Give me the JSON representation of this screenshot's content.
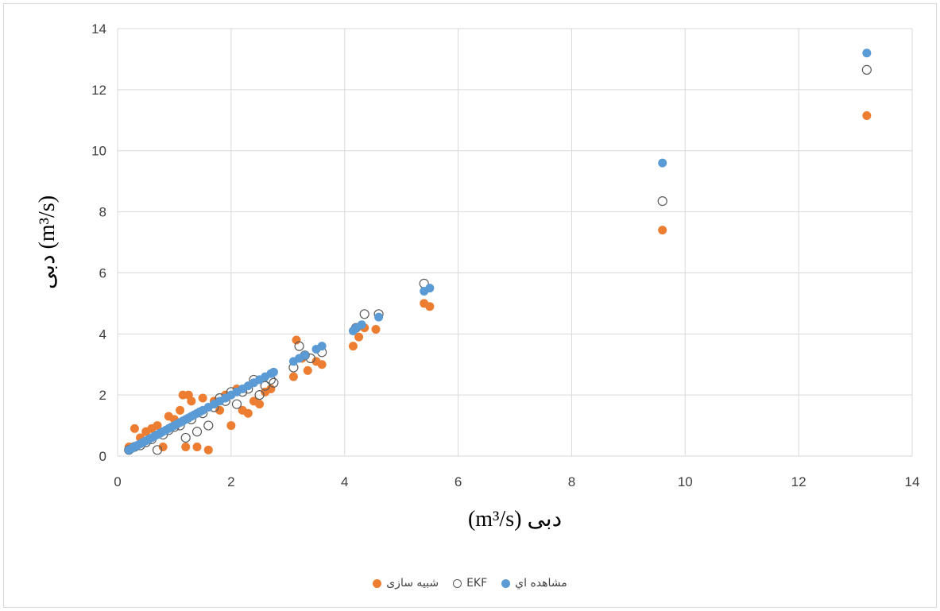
{
  "chart_data": {
    "type": "scatter",
    "title": "",
    "xlabel": "(m³/s) دبی",
    "ylabel": "دبی (m³/s)",
    "xlim": [
      0,
      14
    ],
    "ylim": [
      0,
      14
    ],
    "x_ticks": [
      "0",
      "2",
      "4",
      "6",
      "8",
      "10",
      "12",
      "14"
    ],
    "y_ticks": [
      "0",
      "2",
      "4",
      "6",
      "8",
      "10",
      "12",
      "14"
    ],
    "grid": true,
    "legend_position": "bottom",
    "series": [
      {
        "name": "مشاهده اي",
        "color": "#5b9bd5",
        "marker": "filled-circle",
        "points": [
          [
            0.2,
            0.2
          ],
          [
            0.25,
            0.25
          ],
          [
            0.3,
            0.3
          ],
          [
            0.35,
            0.35
          ],
          [
            0.4,
            0.4
          ],
          [
            0.45,
            0.45
          ],
          [
            0.5,
            0.5
          ],
          [
            0.55,
            0.55
          ],
          [
            0.6,
            0.6
          ],
          [
            0.65,
            0.65
          ],
          [
            0.7,
            0.7
          ],
          [
            0.75,
            0.75
          ],
          [
            0.8,
            0.8
          ],
          [
            0.85,
            0.85
          ],
          [
            0.9,
            0.9
          ],
          [
            0.95,
            0.95
          ],
          [
            1.0,
            1.0
          ],
          [
            1.05,
            1.05
          ],
          [
            1.1,
            1.1
          ],
          [
            1.15,
            1.15
          ],
          [
            1.2,
            1.2
          ],
          [
            1.25,
            1.25
          ],
          [
            1.3,
            1.3
          ],
          [
            1.35,
            1.35
          ],
          [
            1.4,
            1.4
          ],
          [
            1.45,
            1.45
          ],
          [
            1.5,
            1.5
          ],
          [
            1.6,
            1.6
          ],
          [
            1.7,
            1.7
          ],
          [
            1.8,
            1.8
          ],
          [
            1.9,
            1.9
          ],
          [
            2.0,
            2.0
          ],
          [
            2.1,
            2.1
          ],
          [
            2.2,
            2.2
          ],
          [
            2.3,
            2.3
          ],
          [
            2.4,
            2.4
          ],
          [
            2.5,
            2.5
          ],
          [
            2.6,
            2.6
          ],
          [
            2.7,
            2.7
          ],
          [
            2.75,
            2.75
          ],
          [
            3.1,
            3.1
          ],
          [
            3.2,
            3.2
          ],
          [
            3.3,
            3.3
          ],
          [
            3.5,
            3.5
          ],
          [
            3.6,
            3.6
          ],
          [
            4.15,
            4.1
          ],
          [
            4.2,
            4.2
          ],
          [
            4.3,
            4.3
          ],
          [
            4.6,
            4.55
          ],
          [
            5.4,
            5.4
          ],
          [
            5.5,
            5.5
          ],
          [
            9.6,
            9.6
          ],
          [
            13.2,
            13.2
          ]
        ]
      },
      {
        "name": "EKF",
        "color": "#595959",
        "marker": "hollow-circle",
        "points": [
          [
            0.2,
            0.2
          ],
          [
            0.3,
            0.3
          ],
          [
            0.4,
            0.35
          ],
          [
            0.5,
            0.45
          ],
          [
            0.6,
            0.55
          ],
          [
            0.7,
            0.2
          ],
          [
            0.8,
            0.7
          ],
          [
            0.9,
            0.85
          ],
          [
            1.0,
            0.95
          ],
          [
            1.1,
            1.0
          ],
          [
            1.2,
            0.6
          ],
          [
            1.3,
            1.2
          ],
          [
            1.4,
            0.8
          ],
          [
            1.5,
            1.4
          ],
          [
            1.6,
            1.0
          ],
          [
            1.7,
            1.6
          ],
          [
            1.8,
            1.9
          ],
          [
            1.9,
            1.8
          ],
          [
            2.0,
            2.1
          ],
          [
            2.1,
            1.7
          ],
          [
            2.2,
            2.1
          ],
          [
            2.3,
            2.2
          ],
          [
            2.4,
            2.5
          ],
          [
            2.5,
            2.0
          ],
          [
            2.6,
            2.3
          ],
          [
            2.7,
            2.5
          ],
          [
            2.75,
            2.4
          ],
          [
            3.1,
            2.9
          ],
          [
            3.2,
            3.6
          ],
          [
            3.3,
            3.3
          ],
          [
            3.4,
            3.2
          ],
          [
            3.6,
            3.4
          ],
          [
            4.2,
            4.2
          ],
          [
            4.35,
            4.65
          ],
          [
            4.6,
            4.65
          ],
          [
            5.4,
            5.65
          ],
          [
            9.6,
            8.35
          ],
          [
            13.2,
            12.65
          ]
        ]
      },
      {
        "name": "شبیه سازی",
        "color": "#ed7d31",
        "marker": "filled-circle",
        "points": [
          [
            0.2,
            0.3
          ],
          [
            0.3,
            0.9
          ],
          [
            0.4,
            0.6
          ],
          [
            0.5,
            0.8
          ],
          [
            0.6,
            0.9
          ],
          [
            0.7,
            1.0
          ],
          [
            0.8,
            0.3
          ],
          [
            0.9,
            1.3
          ],
          [
            1.0,
            1.2
          ],
          [
            1.1,
            1.5
          ],
          [
            1.15,
            2.0
          ],
          [
            1.2,
            0.3
          ],
          [
            1.25,
            2.0
          ],
          [
            1.3,
            1.8
          ],
          [
            1.4,
            0.3
          ],
          [
            1.5,
            1.9
          ],
          [
            1.6,
            0.2
          ],
          [
            1.7,
            1.8
          ],
          [
            1.8,
            1.5
          ],
          [
            1.9,
            2.0
          ],
          [
            2.0,
            1.0
          ],
          [
            2.1,
            2.2
          ],
          [
            2.2,
            1.5
          ],
          [
            2.3,
            1.4
          ],
          [
            2.4,
            1.8
          ],
          [
            2.5,
            1.7
          ],
          [
            2.6,
            2.1
          ],
          [
            2.7,
            2.2
          ],
          [
            3.1,
            2.6
          ],
          [
            3.15,
            3.8
          ],
          [
            3.25,
            3.2
          ],
          [
            3.35,
            2.8
          ],
          [
            3.5,
            3.1
          ],
          [
            3.6,
            3.0
          ],
          [
            4.15,
            3.6
          ],
          [
            4.25,
            3.9
          ],
          [
            4.35,
            4.2
          ],
          [
            4.55,
            4.15
          ],
          [
            5.4,
            5.0
          ],
          [
            5.5,
            4.9
          ],
          [
            9.6,
            7.4
          ],
          [
            13.2,
            11.15
          ]
        ]
      }
    ]
  }
}
